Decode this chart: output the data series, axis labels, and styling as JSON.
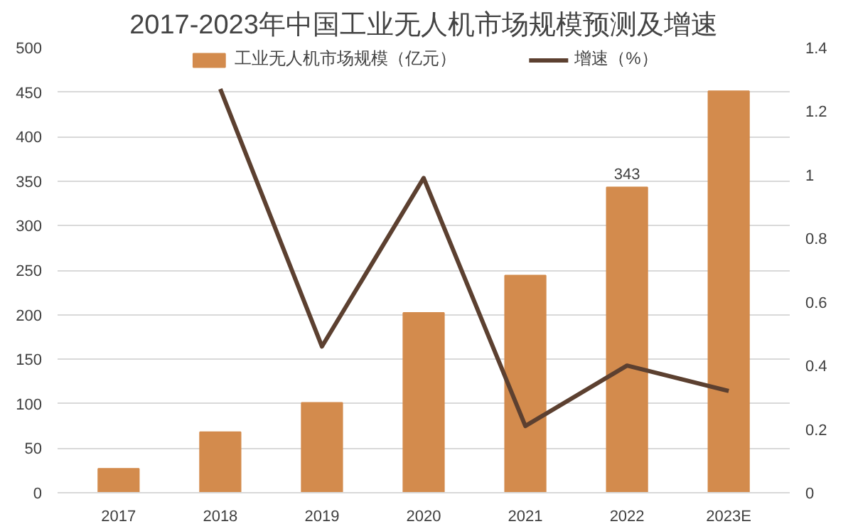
{
  "chart_data": {
    "type": "bar",
    "title": "2017-2023年中国工业无人机市场规模预测及增速",
    "categories": [
      "2017",
      "2018",
      "2019",
      "2020",
      "2021",
      "2022",
      "2023E"
    ],
    "series": [
      {
        "name": "工业无人机市场规模（亿元）",
        "color": "#d38b4d",
        "values": [
          27,
          68,
          101,
          202,
          244,
          343,
          451
        ],
        "value_labels": [
          null,
          null,
          null,
          null,
          null,
          "343",
          null
        ]
      },
      {
        "name": "增速（%）",
        "type": "line",
        "axis": "y2",
        "color": "#5c4030",
        "values": [
          null,
          1.27,
          0.46,
          0.99,
          0.21,
          0.4,
          0.32
        ]
      }
    ],
    "ylim": [
      0,
      500
    ],
    "yticks": [
      0,
      50,
      100,
      150,
      200,
      250,
      300,
      350,
      400,
      450,
      500
    ],
    "y2lim": [
      0,
      1.4
    ],
    "y2ticks": [
      0,
      0.2,
      0.4,
      0.6,
      0.8,
      1,
      1.2,
      1.4
    ],
    "grid": "y",
    "legend": "top"
  }
}
